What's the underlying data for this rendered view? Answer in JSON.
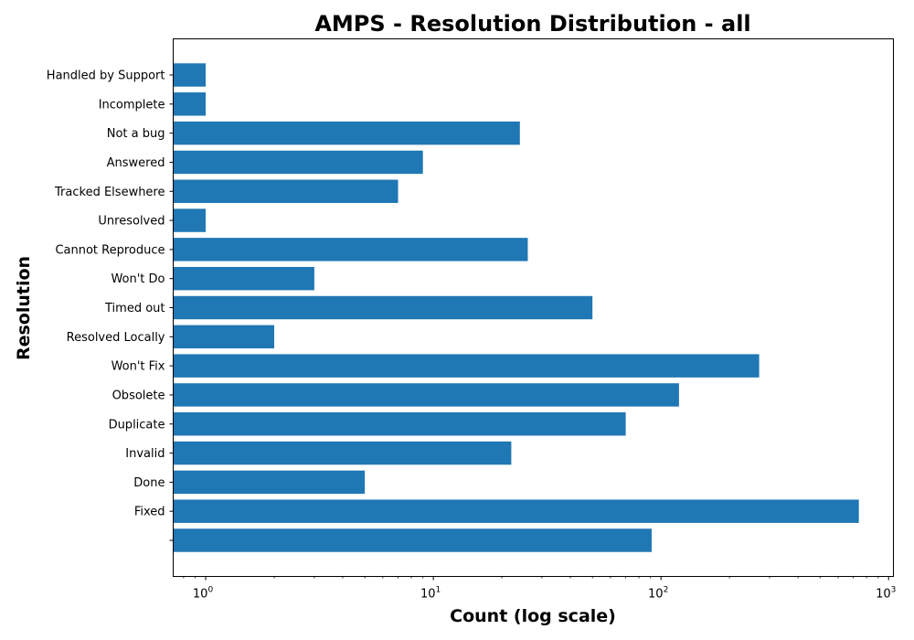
{
  "chart_data": {
    "type": "bar",
    "orientation": "horizontal",
    "title": "AMPS - Resolution Distribution - all",
    "xlabel": "Count (log scale)",
    "ylabel": "Resolution",
    "xscale": "log",
    "xlim": [
      0.72,
      1050
    ],
    "xticks": [
      {
        "base": "10",
        "exp": "0",
        "value": 1
      },
      {
        "base": "10",
        "exp": "1",
        "value": 10
      },
      {
        "base": "10",
        "exp": "2",
        "value": 100
      },
      {
        "base": "10",
        "exp": "3",
        "value": 1000
      }
    ],
    "categories": [
      "Handled by Support",
      "Incomplete",
      "Not a bug",
      "Answered",
      "Tracked Elsewhere",
      "Unresolved",
      "Cannot Reproduce",
      "Won't Do",
      "Timed out",
      "Resolved Locally",
      "Won't Fix",
      "Obsolete",
      "Duplicate",
      "Invalid",
      "Done",
      "Fixed",
      ""
    ],
    "values": [
      1,
      1,
      24,
      9,
      7,
      1,
      26,
      3,
      50,
      2,
      270,
      120,
      70,
      22,
      5,
      740,
      91
    ],
    "bar_color": "#1f77b4",
    "grid": false
  }
}
